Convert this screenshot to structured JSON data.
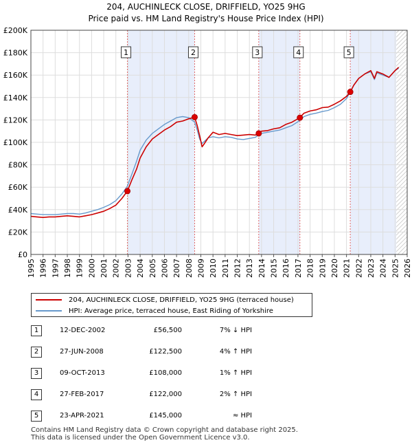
{
  "chart_data": {
    "type": "line",
    "title": "204, AUCHINLECK CLOSE, DRIFFIELD, YO25 9HG",
    "subtitle": "Price paid vs. HM Land Registry's House Price Index (HPI)",
    "ylim": [
      0,
      200000
    ],
    "xlim": [
      1995,
      2026
    ],
    "y_ticks": [
      {
        "value": 0,
        "label": "£0"
      },
      {
        "value": 20000,
        "label": "£20K"
      },
      {
        "value": 40000,
        "label": "£40K"
      },
      {
        "value": 60000,
        "label": "£60K"
      },
      {
        "value": 80000,
        "label": "£80K"
      },
      {
        "value": 100000,
        "label": "£100K"
      },
      {
        "value": 120000,
        "label": "£120K"
      },
      {
        "value": 140000,
        "label": "£140K"
      },
      {
        "value": 160000,
        "label": "£160K"
      },
      {
        "value": 180000,
        "label": "£180K"
      },
      {
        "value": 200000,
        "label": "£200K"
      }
    ],
    "x_ticks": [
      "1995",
      "1996",
      "1997",
      "1998",
      "1999",
      "2000",
      "2001",
      "2002",
      "2003",
      "2004",
      "2005",
      "2006",
      "2007",
      "2008",
      "2009",
      "2010",
      "2011",
      "2012",
      "2013",
      "2014",
      "2015",
      "2016",
      "2017",
      "2018",
      "2019",
      "2020",
      "2021",
      "2022",
      "2023",
      "2024",
      "2025",
      "2026"
    ],
    "future_shade_start": 2025.1,
    "series": [
      {
        "name": "204, AUCHINLECK CLOSE, DRIFFIELD, YO25 9HG (terraced house)",
        "color": "#cc0000",
        "x": [
          1995.0,
          1995.5,
          1996.0,
          1996.5,
          1997.0,
          1997.5,
          1998.0,
          1998.5,
          1999.0,
          1999.5,
          2000.0,
          2000.5,
          2001.0,
          2001.5,
          2002.0,
          2002.5,
          2002.95,
          2003.3,
          2003.7,
          2004.0,
          2004.5,
          2005.0,
          2005.5,
          2006.0,
          2006.5,
          2007.0,
          2007.5,
          2008.0,
          2008.49,
          2008.7,
          2008.9,
          2009.1,
          2009.3,
          2009.6,
          2010.0,
          2010.5,
          2011.0,
          2011.5,
          2012.0,
          2012.5,
          2013.0,
          2013.5,
          2013.77,
          2014.0,
          2014.5,
          2015.0,
          2015.5,
          2016.0,
          2016.5,
          2017.16,
          2017.5,
          2018.0,
          2018.5,
          2019.0,
          2019.5,
          2020.0,
          2020.5,
          2021.0,
          2021.31,
          2021.6,
          2022.0,
          2022.5,
          2023.0,
          2023.3,
          2023.5,
          2024.0,
          2024.5,
          2025.0,
          2025.3
        ],
        "y": [
          34000,
          33500,
          33000,
          33500,
          33500,
          34000,
          34500,
          34000,
          33500,
          34500,
          35500,
          37000,
          38500,
          41000,
          44000,
          50000,
          56500,
          66000,
          76000,
          86000,
          96000,
          103000,
          107000,
          111000,
          114000,
          118000,
          119000,
          121000,
          122500,
          115000,
          106000,
          96000,
          99000,
          104000,
          109000,
          107000,
          108000,
          107000,
          106000,
          106500,
          107000,
          106500,
          108000,
          110000,
          110500,
          112000,
          113000,
          116000,
          118000,
          122000,
          126000,
          128000,
          129000,
          131000,
          131500,
          134000,
          137000,
          141000,
          145000,
          151000,
          157000,
          161000,
          164000,
          157000,
          163000,
          161000,
          158000,
          164000,
          167000
        ]
      },
      {
        "name": "HPI: Average price, terraced house, East Riding of Yorkshire",
        "color": "#6699cc",
        "x": [
          1995.0,
          1995.5,
          1996.0,
          1996.5,
          1997.0,
          1997.5,
          1998.0,
          1998.5,
          1999.0,
          1999.5,
          2000.0,
          2000.5,
          2001.0,
          2001.5,
          2002.0,
          2002.5,
          2002.95,
          2003.3,
          2003.7,
          2004.0,
          2004.5,
          2005.0,
          2005.5,
          2006.0,
          2006.5,
          2007.0,
          2007.5,
          2008.0,
          2008.49,
          2008.7,
          2008.9,
          2009.1,
          2009.3,
          2009.6,
          2010.0,
          2010.5,
          2011.0,
          2011.5,
          2012.0,
          2012.5,
          2013.0,
          2013.5,
          2013.77,
          2014.0,
          2014.5,
          2015.0,
          2015.5,
          2016.0,
          2016.5,
          2017.16,
          2017.5,
          2018.0,
          2018.5,
          2019.0,
          2019.5,
          2020.0,
          2020.5,
          2021.0,
          2021.31,
          2021.6,
          2022.0,
          2022.5,
          2023.0,
          2023.3,
          2023.5,
          2024.0,
          2024.5,
          2025.0,
          2025.3
        ],
        "y": [
          36500,
          36000,
          35500,
          35500,
          35500,
          36000,
          36500,
          36500,
          36000,
          37000,
          38500,
          40000,
          42000,
          44500,
          48000,
          54000,
          61000,
          71000,
          83000,
          93000,
          102000,
          108000,
          112000,
          116000,
          119000,
          122000,
          123000,
          122000,
          118000,
          111000,
          103000,
          99000,
          101000,
          104000,
          105000,
          104000,
          105000,
          104500,
          103000,
          102500,
          103500,
          104500,
          107000,
          108000,
          109000,
          110000,
          111000,
          113000,
          115000,
          119500,
          123000,
          125000,
          126000,
          127500,
          128500,
          131000,
          134000,
          139000,
          145000,
          151000,
          157000,
          161000,
          163000,
          156000,
          162000,
          160000,
          158000,
          164000,
          166000
        ]
      }
    ],
    "transactions": [
      {
        "num": "1",
        "x": 2002.95,
        "y": 56500
      },
      {
        "num": "2",
        "x": 2008.49,
        "y": 122500
      },
      {
        "num": "3",
        "x": 2013.77,
        "y": 108000
      },
      {
        "num": "4",
        "x": 2017.16,
        "y": 122000
      },
      {
        "num": "5",
        "x": 2021.31,
        "y": 145000
      }
    ],
    "highlight_bands": [
      [
        2002.95,
        2008.49
      ],
      [
        2013.77,
        2017.16
      ],
      [
        2021.31,
        2025.1
      ]
    ]
  },
  "legend": {
    "property_label": "204, AUCHINLECK CLOSE, DRIFFIELD, YO25 9HG (terraced house)",
    "hpi_label": "HPI: Average price, terraced house, East Riding of Yorkshire"
  },
  "table": [
    {
      "num": "1",
      "date": "12-DEC-2002",
      "price": "£56,500",
      "hpi": "7% ↓ HPI"
    },
    {
      "num": "2",
      "date": "27-JUN-2008",
      "price": "£122,500",
      "hpi": "4% ↑ HPI"
    },
    {
      "num": "3",
      "date": "09-OCT-2013",
      "price": "£108,000",
      "hpi": "1% ↑ HPI"
    },
    {
      "num": "4",
      "date": "27-FEB-2017",
      "price": "£122,000",
      "hpi": "2% ↑ HPI"
    },
    {
      "num": "5",
      "date": "23-APR-2021",
      "price": "£145,000",
      "hpi": "≈ HPI"
    }
  ],
  "footer": {
    "line1": "Contains HM Land Registry data © Crown copyright and database right 2025.",
    "line2": "This data is licensed under the Open Government Licence v3.0."
  }
}
